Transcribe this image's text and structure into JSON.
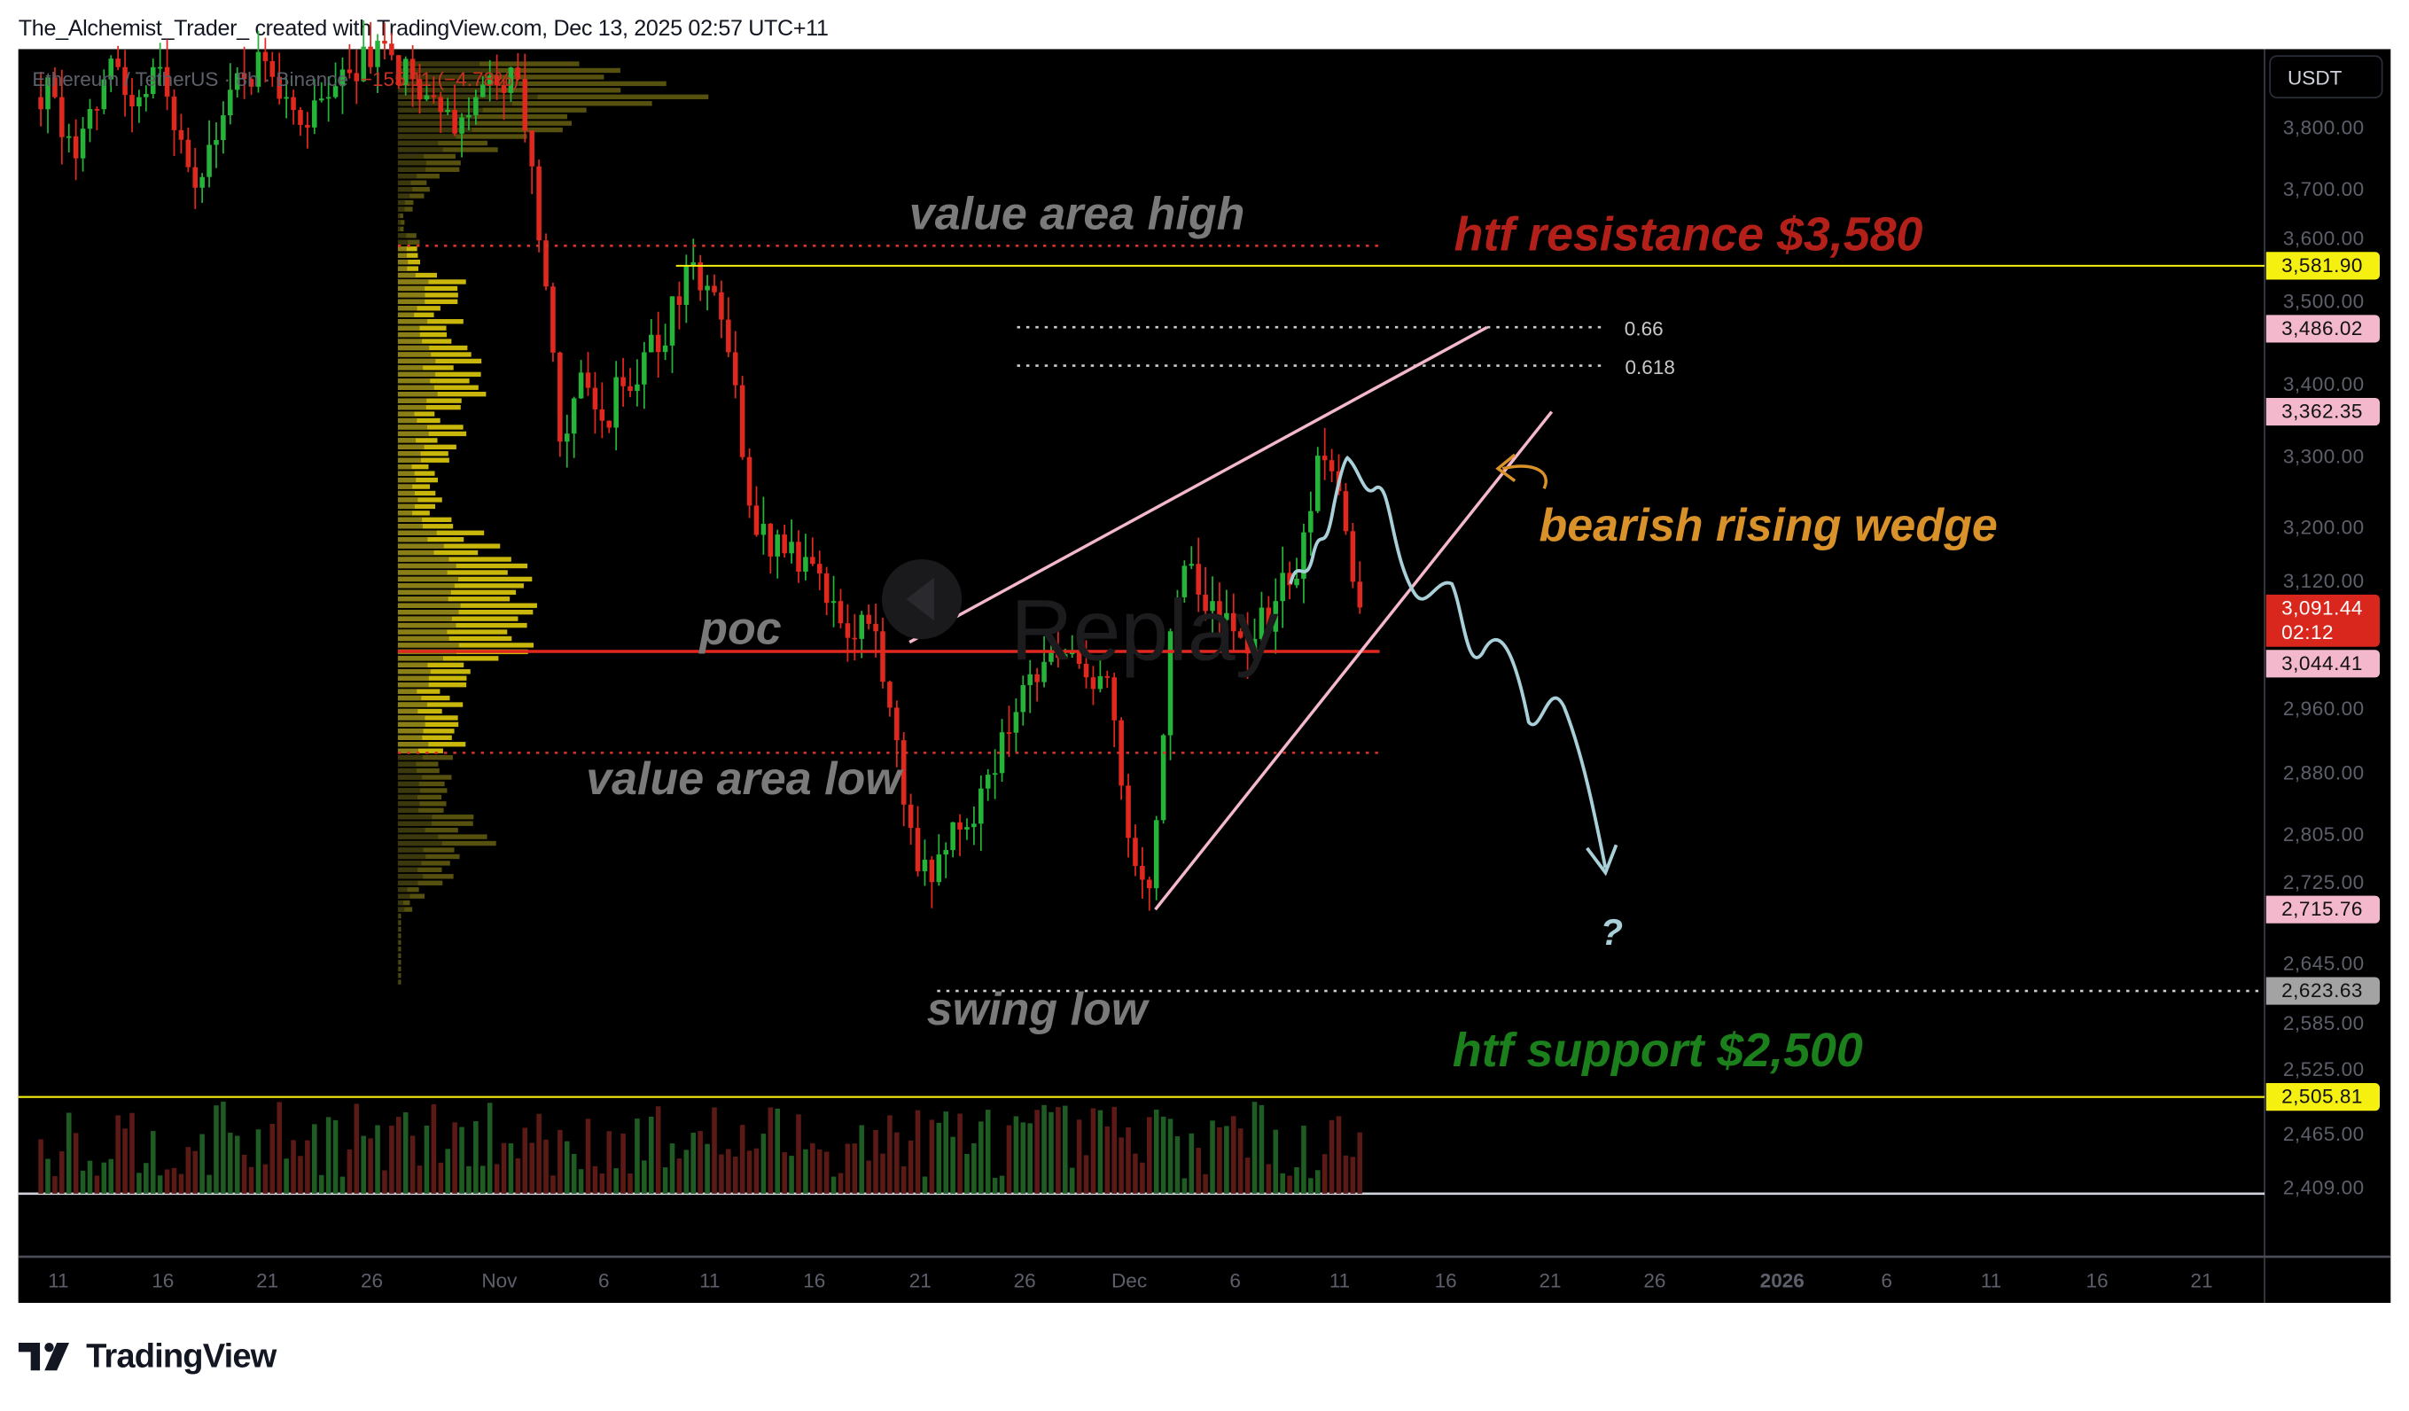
{
  "header": {
    "caption": "The_Alchemist_Trader_ created with TradingView.com, Dec 13, 2025 02:57 UTC+11"
  },
  "legend": {
    "symbol": "Ethereum / TetherUS · 8h · Binance",
    "change": "−155.11 (−4.78%)"
  },
  "price_axis": {
    "currency": "USDT"
  },
  "watermark": "Replay",
  "annotations": {
    "vah": "value area high",
    "resistance": "htf resistance $3,580",
    "wedge": "bearish rising wedge",
    "poc": "poc",
    "val": "value area low",
    "swing_low": "swing low",
    "support": "htf support $2,500",
    "question": "?",
    "fib_066": "0.66",
    "fib_0618": "0.618"
  },
  "colors": {
    "up": "#26b33a",
    "down": "#e0281e",
    "resistance": "#b3201a",
    "support": "#1b7f1b",
    "wedge_text": "#d9922a",
    "wedge_lines": "#f4b8cc",
    "projection": "#a9cfd8",
    "level_yellow": "#f5f00f"
  },
  "price_labels": [
    {
      "value": "3,581.90",
      "style": "yellow"
    },
    {
      "value": "3,486.02",
      "style": "pink"
    },
    {
      "value": "3,362.35",
      "style": "pink"
    },
    {
      "value": "3,091.44",
      "sub": "02:12",
      "style": "red"
    },
    {
      "value": "3,044.41",
      "style": "pink"
    },
    {
      "value": "2,715.76",
      "style": "pink"
    },
    {
      "value": "2,623.63",
      "style": "gray"
    },
    {
      "value": "2,505.81",
      "style": "yellow"
    }
  ],
  "footer": {
    "brand": "TradingView"
  },
  "chart_data": {
    "type": "candlestick",
    "title": "Ethereum / TetherUS · 8h · Binance",
    "y_scale": "log",
    "ylim": [
      2409,
      3930
    ],
    "y_ticks": [
      "3,800.00",
      "3,700.00",
      "3,600.00",
      "3,500.00",
      "3,400.00",
      "3,300.00",
      "3,200.00",
      "3,120.00",
      "2,960.00",
      "2,880.00",
      "2,805.00",
      "2,725.00",
      "2,645.00",
      "2,585.00",
      "2,525.00",
      "2,465.00",
      "2,409.00"
    ],
    "x_ticks": [
      "11",
      "16",
      "21",
      "26",
      "Nov",
      "6",
      "11",
      "16",
      "21",
      "26",
      "Dec",
      "6",
      "11",
      "16",
      "21",
      "26",
      "2026",
      "6",
      "11",
      "16",
      "21"
    ],
    "x_range": [
      "2025-10-10",
      "2026-01-24"
    ],
    "daily_close_estimates": {
      "start": "2025-10-10",
      "values": [
        3850,
        3750,
        3830,
        3900,
        3850,
        3900,
        3780,
        3720,
        3820,
        3880,
        3910,
        3850,
        3800,
        3850,
        3890,
        3900,
        3920,
        3880,
        3850,
        3790,
        3850,
        3870,
        3880,
        3620,
        3320,
        3420,
        3350,
        3400,
        3450,
        3460,
        3580,
        3550,
        3450,
        3230,
        3160,
        3180,
        3150,
        3100,
        3050,
        3060,
        2920,
        2760,
        2780,
        2810,
        2860,
        2930,
        2990,
        3020,
        3030,
        3000,
        3000,
        2800,
        2740,
        3060,
        3150,
        3100,
        3060,
        3050,
        3100,
        3130,
        3300,
        3250,
        3091.44
      ]
    },
    "levels": {
      "value_area_high": 3612,
      "poc": 3044.41,
      "value_area_low": 2880,
      "htf_resistance": 3581.9,
      "htf_support": 2505.81,
      "swing_low": 2623.63,
      "fib_066": 3486.02,
      "fib_0618": 3430
    }
  }
}
